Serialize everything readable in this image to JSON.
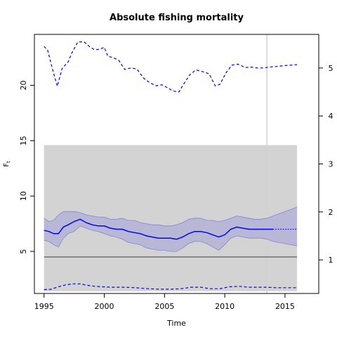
{
  "chart_data": {
    "type": "line",
    "title": "Absolute fishing mortality",
    "xlabel": "Time",
    "ylabel": "F",
    "ylabel_subscript": "t",
    "xlim": [
      1994.2,
      2017.8
    ],
    "ylim_left": [
      1.2,
      24.6
    ],
    "ylim_right": [
      0.3,
      5.7
    ],
    "x_ticks": [
      1995,
      2000,
      2005,
      2010,
      2015
    ],
    "y_ticks_left": [
      5,
      10,
      15,
      20
    ],
    "y_ticks_right": [
      1,
      2,
      3,
      4,
      5
    ],
    "grid": false,
    "legend": "none",
    "shaded_region": {
      "x": [
        1995,
        2016
      ],
      "y_left": [
        1.4,
        14.6
      ],
      "color": "#d3d3d3"
    },
    "vertical_line": {
      "x": 2013.5,
      "color": "#d3d3d3"
    },
    "horizontal_line": {
      "y_left": 4.5,
      "color": "#707070"
    },
    "colors": {
      "series": "#0000ff",
      "band": "#b3b3d6",
      "band_edge": "#5a5ae0"
    },
    "series": [
      {
        "role": "estimate",
        "style": "solid",
        "x": [
          1995.0,
          1995.4,
          1995.8,
          1996.2,
          1996.6,
          1997.0,
          1997.5,
          1998.0,
          1998.5,
          1999.0,
          1999.5,
          2000.0,
          2000.5,
          2001.0,
          2001.5,
          2002.0,
          2002.5,
          2003.0,
          2003.5,
          2004.0,
          2004.5,
          2005.0,
          2005.5,
          2006.0,
          2006.5,
          2007.0,
          2007.5,
          2008.0,
          2008.5,
          2009.0,
          2009.5,
          2010.0,
          2010.5,
          2011.0,
          2011.5,
          2012.0,
          2012.5,
          2013.0,
          2013.5,
          2014.0
        ],
        "values": [
          6.9,
          6.8,
          6.6,
          6.6,
          7.2,
          7.4,
          7.7,
          7.9,
          7.6,
          7.4,
          7.3,
          7.3,
          7.1,
          7.0,
          7.0,
          6.8,
          6.7,
          6.6,
          6.4,
          6.3,
          6.2,
          6.2,
          6.2,
          6.1,
          6.3,
          6.6,
          6.8,
          6.8,
          6.7,
          6.5,
          6.3,
          6.5,
          7.0,
          7.2,
          7.1,
          7.0,
          7.0,
          7.0,
          7.0,
          7.0
        ]
      },
      {
        "role": "estimate-forecast",
        "style": "dotted",
        "x": [
          2014.0,
          2016.0
        ],
        "values": [
          7.0,
          7.0
        ]
      },
      {
        "role": "ci-upper",
        "x": [
          1995.0,
          1995.4,
          1995.8,
          1996.2,
          1996.6,
          1997.0,
          1997.5,
          1998.0,
          1998.5,
          1999.0,
          1999.5,
          2000.0,
          2000.5,
          2001.0,
          2001.5,
          2002.0,
          2002.5,
          2003.0,
          2003.5,
          2004.0,
          2004.5,
          2005.0,
          2005.5,
          2006.0,
          2006.5,
          2007.0,
          2007.5,
          2008.0,
          2008.5,
          2009.0,
          2009.5,
          2010.0,
          2010.5,
          2011.0,
          2011.5,
          2012.0,
          2012.5,
          2013.0,
          2013.5,
          2014.0,
          2015.0,
          2016.0
        ],
        "values": [
          8.0,
          7.7,
          7.8,
          8.3,
          8.6,
          8.6,
          8.6,
          8.5,
          8.3,
          8.2,
          8.1,
          8.1,
          7.9,
          7.9,
          8.0,
          7.8,
          7.8,
          7.6,
          7.5,
          7.4,
          7.4,
          7.3,
          7.3,
          7.4,
          7.6,
          7.9,
          8.0,
          8.0,
          7.8,
          7.8,
          7.7,
          7.8,
          8.0,
          8.2,
          8.1,
          8.0,
          7.9,
          7.9,
          8.0,
          8.2,
          8.6,
          9.0
        ]
      },
      {
        "role": "ci-lower",
        "x": [
          1995.0,
          1995.4,
          1995.8,
          1996.2,
          1996.6,
          1997.0,
          1997.5,
          1998.0,
          1998.5,
          1999.0,
          1999.5,
          2000.0,
          2000.5,
          2001.0,
          2001.5,
          2002.0,
          2002.5,
          2003.0,
          2003.5,
          2004.0,
          2004.5,
          2005.0,
          2005.5,
          2006.0,
          2006.5,
          2007.0,
          2007.5,
          2008.0,
          2008.5,
          2009.0,
          2009.5,
          2010.0,
          2010.5,
          2011.0,
          2011.5,
          2012.0,
          2012.5,
          2013.0,
          2013.5,
          2014.0,
          2015.0,
          2016.0
        ],
        "values": [
          6.0,
          5.9,
          5.6,
          5.4,
          6.2,
          6.6,
          6.8,
          7.3,
          7.1,
          6.9,
          6.8,
          6.6,
          6.4,
          6.3,
          6.1,
          5.8,
          5.7,
          5.6,
          5.3,
          5.2,
          5.1,
          5.1,
          5.0,
          5.0,
          5.3,
          5.7,
          5.9,
          5.9,
          5.7,
          5.4,
          5.1,
          5.6,
          6.2,
          6.4,
          6.3,
          6.2,
          6.2,
          6.2,
          6.1,
          5.9,
          5.7,
          5.5
        ]
      },
      {
        "role": "right-axis-upper",
        "style": "dashed",
        "axis": "right",
        "x": [
          1995.0,
          1995.3,
          1995.7,
          1996.1,
          1996.5,
          1997.0,
          1997.3,
          1997.8,
          1998.3,
          1998.8,
          1999.2,
          1999.6,
          2000.0,
          2000.3,
          2000.7,
          2001.2,
          2001.7,
          2002.2,
          2002.7,
          2003.3,
          2003.8,
          2004.3,
          2004.8,
          2005.3,
          2005.7,
          2006.2,
          2006.6,
          2007.1,
          2007.6,
          2008.2,
          2008.7,
          2009.2,
          2009.6,
          2010.1,
          2010.6,
          2011.1,
          2011.7,
          2012.2,
          2012.7,
          2013.2,
          2013.7,
          2014.2,
          2015.0,
          2016.0
        ],
        "values": [
          5.45,
          5.37,
          4.98,
          4.62,
          4.99,
          5.13,
          5.31,
          5.54,
          5.55,
          5.44,
          5.38,
          5.39,
          5.43,
          5.24,
          5.22,
          5.16,
          4.97,
          5.0,
          4.98,
          4.78,
          4.69,
          4.63,
          4.65,
          4.58,
          4.52,
          4.5,
          4.67,
          4.86,
          4.96,
          4.92,
          4.88,
          4.63,
          4.66,
          4.9,
          5.06,
          5.08,
          5.01,
          5.02,
          5.0,
          5.0,
          5.02,
          5.03,
          5.05,
          5.07
        ]
      },
      {
        "role": "right-axis-lower",
        "style": "dashed",
        "axis": "right",
        "x": [
          1995.0,
          1995.6,
          1996.2,
          1996.8,
          1997.4,
          1998.0,
          1998.6,
          1999.2,
          1999.8,
          2000.6,
          2001.6,
          2002.6,
          2003.6,
          2004.6,
          2005.6,
          2006.4,
          2007.2,
          2008.0,
          2008.8,
          2009.6,
          2010.4,
          2011.2,
          2012.0,
          2012.8,
          2013.5,
          2014.2,
          2015.0,
          2016.0
        ],
        "values": [
          0.38,
          0.39,
          0.44,
          0.48,
          0.5,
          0.5,
          0.47,
          0.45,
          0.44,
          0.43,
          0.43,
          0.42,
          0.4,
          0.39,
          0.39,
          0.4,
          0.43,
          0.43,
          0.4,
          0.4,
          0.44,
          0.45,
          0.43,
          0.43,
          0.43,
          0.42,
          0.42,
          0.42
        ]
      }
    ]
  }
}
